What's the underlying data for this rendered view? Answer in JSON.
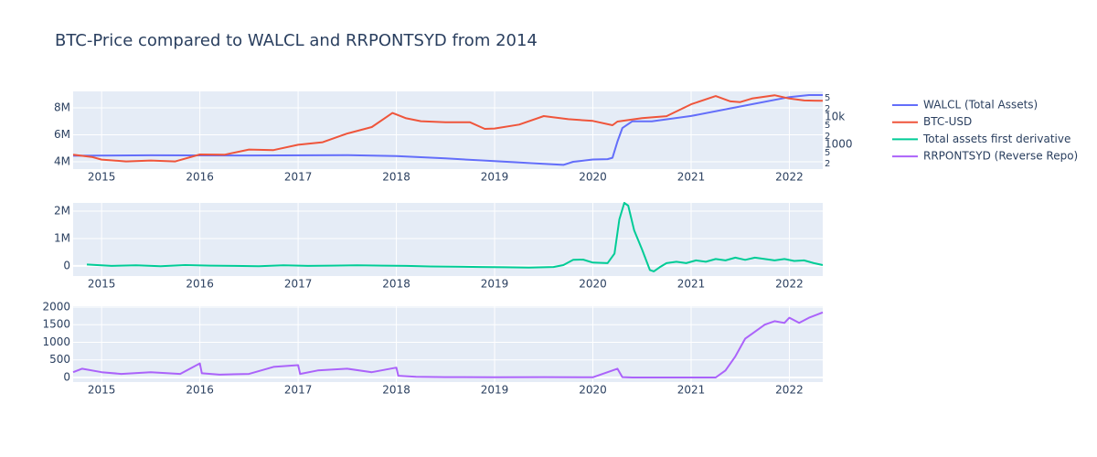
{
  "chart_data": [
    {
      "type": "line",
      "title": "BTC-Price compared to WALCL and RRPONTSYD from 2014",
      "xlim": [
        2014.71,
        2022.34
      ],
      "xticks": [
        2015,
        2016,
        2017,
        2018,
        2019,
        2020,
        2021,
        2022
      ],
      "ylim": [
        3460000,
        9220000
      ],
      "yticks": [
        {
          "value": 4000000,
          "label": "4M"
        },
        {
          "value": 6000000,
          "label": "6M"
        },
        {
          "value": 8000000,
          "label": "8M"
        }
      ],
      "y2lim": [
        126,
        85700
      ],
      "y2log": true,
      "y2ticks": [
        {
          "value": 200,
          "label": "2"
        },
        {
          "value": 500,
          "label": "5"
        },
        1000,
        {
          "value": 2000,
          "label": "2"
        },
        {
          "value": 5000,
          "label": "5"
        },
        {
          "value": 10000,
          "label": "10k"
        },
        {
          "value": 20000,
          "label": "2"
        },
        {
          "value": 50000,
          "label": "5"
        }
      ],
      "grid": true,
      "series": [
        {
          "name": "WALCL (Total Assets)",
          "color": "#636efa",
          "x": [
            2014.71,
            2015.5,
            2016.5,
            2017.5,
            2018.0,
            2018.5,
            2019.0,
            2019.5,
            2019.7,
            2019.8,
            2020.0,
            2020.15,
            2020.2,
            2020.25,
            2020.3,
            2020.4,
            2020.6,
            2021.0,
            2021.5,
            2022.0,
            2022.2,
            2022.34
          ],
          "values": [
            4450000,
            4480000,
            4470000,
            4500000,
            4430000,
            4250000,
            4050000,
            3850000,
            3770000,
            4000000,
            4170000,
            4200000,
            4300000,
            5500000,
            6500000,
            7000000,
            7000000,
            7400000,
            8100000,
            8800000,
            8950000,
            8950000
          ]
        },
        {
          "name": "BTC-USD",
          "color": "#ef553b",
          "axis": "y2",
          "x": [
            2014.71,
            2014.9,
            2015.0,
            2015.25,
            2015.5,
            2015.75,
            2016.0,
            2016.25,
            2016.5,
            2016.75,
            2017.0,
            2017.25,
            2017.5,
            2017.75,
            2017.96,
            2018.1,
            2018.25,
            2018.5,
            2018.75,
            2018.9,
            2019.0,
            2019.25,
            2019.5,
            2019.75,
            2020.0,
            2020.2,
            2020.25,
            2020.5,
            2020.75,
            2021.0,
            2021.25,
            2021.4,
            2021.5,
            2021.62,
            2021.85,
            2022.0,
            2022.15,
            2022.34
          ],
          "values": [
            420,
            350,
            280,
            240,
            260,
            240,
            430,
            420,
            650,
            620,
            970,
            1200,
            2500,
            4300,
            14000,
            9000,
            7000,
            6400,
            6400,
            3700,
            3800,
            5300,
            10800,
            8300,
            7200,
            5000,
            6800,
            9100,
            10700,
            29000,
            58000,
            37000,
            35000,
            47000,
            62000,
            47000,
            40000,
            39000
          ]
        }
      ]
    },
    {
      "type": "line",
      "xlim": [
        2014.71,
        2022.34
      ],
      "xticks": [
        2015,
        2016,
        2017,
        2018,
        2019,
        2020,
        2021,
        2022
      ],
      "ylim": [
        -370000,
        2300000
      ],
      "yticks": [
        0,
        {
          "value": 1000000,
          "label": "1M"
        },
        {
          "value": 2000000,
          "label": "2M"
        }
      ],
      "grid": true,
      "series": [
        {
          "name": "Total assets first derivative",
          "color": "#00cc96",
          "x": [
            2014.85,
            2015.1,
            2015.35,
            2015.6,
            2015.85,
            2016.1,
            2016.35,
            2016.6,
            2016.85,
            2017.1,
            2017.35,
            2017.6,
            2017.85,
            2018.1,
            2018.35,
            2018.6,
            2018.85,
            2019.1,
            2019.35,
            2019.6,
            2019.7,
            2019.8,
            2019.9,
            2020.0,
            2020.15,
            2020.22,
            2020.27,
            2020.32,
            2020.36,
            2020.42,
            2020.5,
            2020.58,
            2020.62,
            2020.68,
            2020.75,
            2020.85,
            2020.95,
            2021.05,
            2021.15,
            2021.25,
            2021.35,
            2021.45,
            2021.55,
            2021.65,
            2021.75,
            2021.85,
            2021.95,
            2022.05,
            2022.15,
            2022.25,
            2022.34
          ],
          "values": [
            50000,
            0,
            20000,
            -10000,
            30000,
            10000,
            0,
            -10000,
            20000,
            0,
            10000,
            20000,
            10000,
            0,
            -20000,
            -30000,
            -40000,
            -50000,
            -60000,
            -40000,
            30000,
            220000,
            230000,
            120000,
            100000,
            450000,
            1700000,
            2300000,
            2200000,
            1300000,
            600000,
            -150000,
            -200000,
            -50000,
            100000,
            150000,
            100000,
            200000,
            150000,
            250000,
            200000,
            300000,
            220000,
            300000,
            250000,
            200000,
            250000,
            180000,
            200000,
            100000,
            30000
          ]
        }
      ]
    },
    {
      "type": "line",
      "xlim": [
        2014.71,
        2022.34
      ],
      "xticks": [
        2015,
        2016,
        2017,
        2018,
        2019,
        2020,
        2021,
        2022
      ],
      "ylim": [
        -130,
        2026
      ],
      "yticks": [
        0,
        500,
        1000,
        1500,
        2000
      ],
      "grid": true,
      "series": [
        {
          "name": "RRPONTSYD (Reverse Repo)",
          "color": "#ab63fa",
          "x": [
            2014.71,
            2014.8,
            2015.0,
            2015.2,
            2015.5,
            2015.8,
            2016.0,
            2016.02,
            2016.2,
            2016.5,
            2016.75,
            2017.0,
            2017.02,
            2017.2,
            2017.5,
            2017.75,
            2018.0,
            2018.02,
            2018.2,
            2018.5,
            2019.0,
            2019.5,
            2020.0,
            2020.25,
            2020.3,
            2020.4,
            2021.0,
            2021.25,
            2021.35,
            2021.45,
            2021.55,
            2021.65,
            2021.75,
            2021.85,
            2021.95,
            2022.0,
            2022.1,
            2022.2,
            2022.34
          ],
          "values": [
            150,
            250,
            150,
            100,
            150,
            100,
            400,
            120,
            80,
            100,
            300,
            350,
            100,
            200,
            250,
            150,
            280,
            50,
            20,
            10,
            5,
            10,
            5,
            250,
            10,
            0,
            0,
            0,
            200,
            600,
            1100,
            1300,
            1500,
            1600,
            1550,
            1700,
            1550,
            1700,
            1850
          ]
        }
      ]
    }
  ]
}
